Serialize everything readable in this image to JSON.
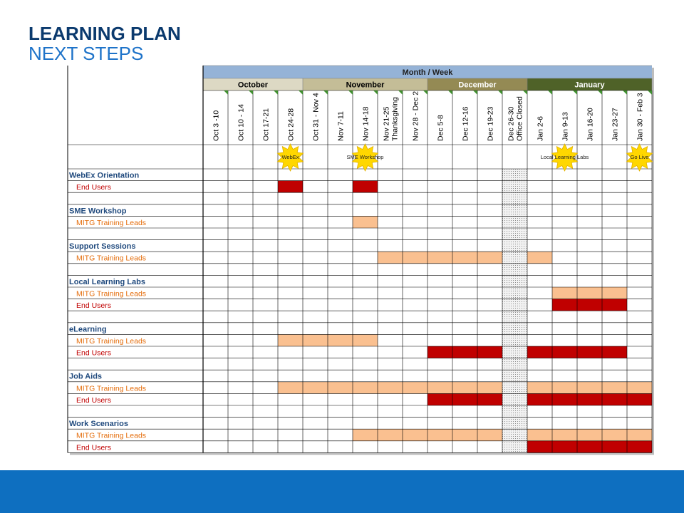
{
  "slide": {
    "title": "LEARNING PLAN",
    "subtitle": "NEXT STEPS"
  },
  "colors": {
    "header_blue": "#95b3d7",
    "oct": "#ddd9c4",
    "nov": "#c4bd97",
    "dec": "#948a54",
    "jan": "#4f6228",
    "trainer_fill": "#fac090",
    "enduser_fill": "#c00000",
    "section_text": "#1f497d",
    "trainer_text": "#e46c0a",
    "enduser_text": "#c00000",
    "star": "#ffd700"
  },
  "schedule": {
    "header_label": "Month / Week",
    "months": [
      {
        "label": "October",
        "span": 4,
        "color": "#ddd9c4",
        "text_color": "#000000"
      },
      {
        "label": "November",
        "span": 5,
        "color": "#c4bd97",
        "text_color": "#000000"
      },
      {
        "label": "December",
        "span": 4,
        "color": "#948a54",
        "text_color": "#ffffff"
      },
      {
        "label": "January",
        "span": 5,
        "color": "#4f6228",
        "text_color": "#ffffff"
      }
    ],
    "weeks": [
      [
        "Oct 3 -10"
      ],
      [
        "Oct 10 - 14"
      ],
      [
        "Oct 17-21"
      ],
      [
        "Oct 24-28"
      ],
      [
        "Oct 31 - Nov 4"
      ],
      [
        "Nov 7-11"
      ],
      [
        "Nov 14-18"
      ],
      [
        "Nov 21-25",
        "Thanksgiving"
      ],
      [
        "Nov 28 - Dec 2"
      ],
      [
        "Dec 5-8"
      ],
      [
        "Dec 12-16"
      ],
      [
        "Dec 19-23"
      ],
      [
        "Dec 26-30",
        "Office Closed"
      ],
      [
        "Jan 2-6"
      ],
      [
        "Jan 9-13"
      ],
      [
        "Jan 16-20"
      ],
      [
        "Jan 23-27"
      ],
      [
        "Jan 30 - Feb 3"
      ]
    ],
    "closed_week_index": 12,
    "milestones": [
      {
        "label": "WebEx",
        "week": 3,
        "star": true
      },
      {
        "label": "SME Workshop",
        "week": 6,
        "star": true
      },
      {
        "label": "Local Learning Labs",
        "week": 14,
        "star": true
      },
      {
        "label": "Go Live",
        "week": 17,
        "star": true
      }
    ],
    "rows": [
      {
        "type": "section",
        "label": "WebEx Orientation"
      },
      {
        "type": "enduser",
        "label": "End Users",
        "filled": [
          3,
          6
        ]
      },
      {
        "type": "blank"
      },
      {
        "type": "section",
        "label": "SME Workshop"
      },
      {
        "type": "trainer",
        "label": "MITG Training Leads",
        "filled": [
          6
        ]
      },
      {
        "type": "blank"
      },
      {
        "type": "section",
        "label": "Support Sessions"
      },
      {
        "type": "trainer",
        "label": "MITG Training Leads",
        "filled": [
          7,
          8,
          9,
          10,
          11,
          13
        ]
      },
      {
        "type": "blank"
      },
      {
        "type": "section",
        "label": "Local Learning Labs"
      },
      {
        "type": "trainer",
        "label": "MITG Training Leads",
        "filled": [
          14,
          15,
          16
        ]
      },
      {
        "type": "enduser",
        "label": "End Users",
        "filled": [
          14,
          15,
          16
        ]
      },
      {
        "type": "blank"
      },
      {
        "type": "section",
        "label": "eLearning"
      },
      {
        "type": "trainer",
        "label": "MITG Training Leads",
        "filled": [
          3,
          4,
          5,
          6
        ]
      },
      {
        "type": "enduser",
        "label": "End Users",
        "filled": [
          9,
          10,
          11,
          13,
          14,
          15,
          16
        ]
      },
      {
        "type": "blank"
      },
      {
        "type": "section",
        "label": "Job Aids"
      },
      {
        "type": "trainer",
        "label": "MITG Training Leads",
        "filled": [
          3,
          4,
          5,
          6,
          7,
          8,
          9,
          10,
          11,
          13,
          14,
          15,
          16,
          17
        ]
      },
      {
        "type": "enduser",
        "label": "End Users",
        "filled": [
          9,
          10,
          11,
          13,
          14,
          15,
          16,
          17
        ]
      },
      {
        "type": "blank"
      },
      {
        "type": "section",
        "label": "Work Scenarios"
      },
      {
        "type": "trainer",
        "label": "MITG Training Leads",
        "filled": [
          6,
          7,
          8,
          9,
          10,
          11,
          13,
          14,
          15,
          16,
          17
        ]
      },
      {
        "type": "enduser",
        "label": "End Users",
        "filled": [
          13,
          14,
          15,
          16,
          17
        ]
      }
    ]
  }
}
